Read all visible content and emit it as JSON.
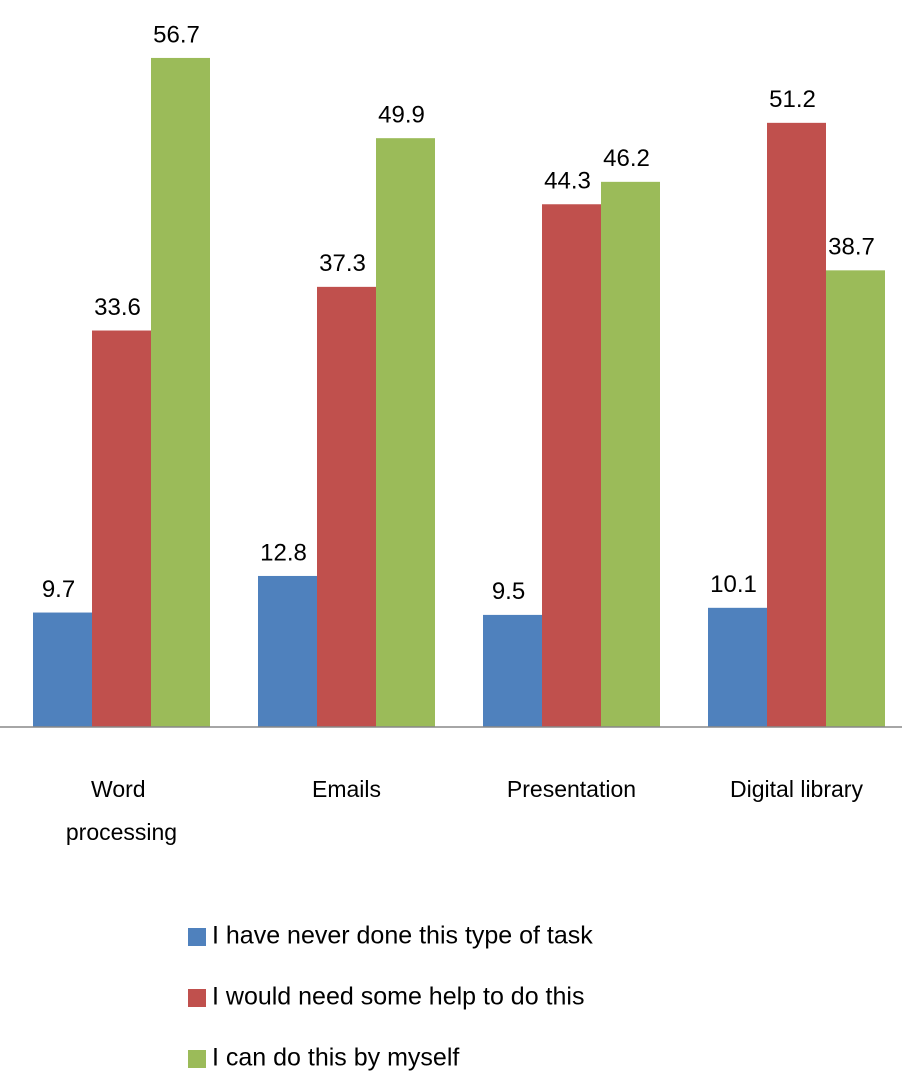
{
  "chart_data": {
    "type": "bar",
    "categories": [
      "Word processing",
      "Emails",
      "Presentation",
      "Digital library"
    ],
    "series": [
      {
        "name": "I have never done this type of task",
        "color": "#4f81bd",
        "values": [
          9.7,
          12.8,
          9.5,
          10.1
        ]
      },
      {
        "name": "I would need some help to do this",
        "color": "#c0504d",
        "values": [
          33.6,
          37.3,
          44.3,
          51.2
        ]
      },
      {
        "name": "I can do this by myself",
        "color": "#9bbb59",
        "values": [
          56.7,
          49.9,
          46.2,
          38.7
        ]
      }
    ],
    "ylim": [
      0,
      60
    ],
    "legend": "bottom"
  }
}
